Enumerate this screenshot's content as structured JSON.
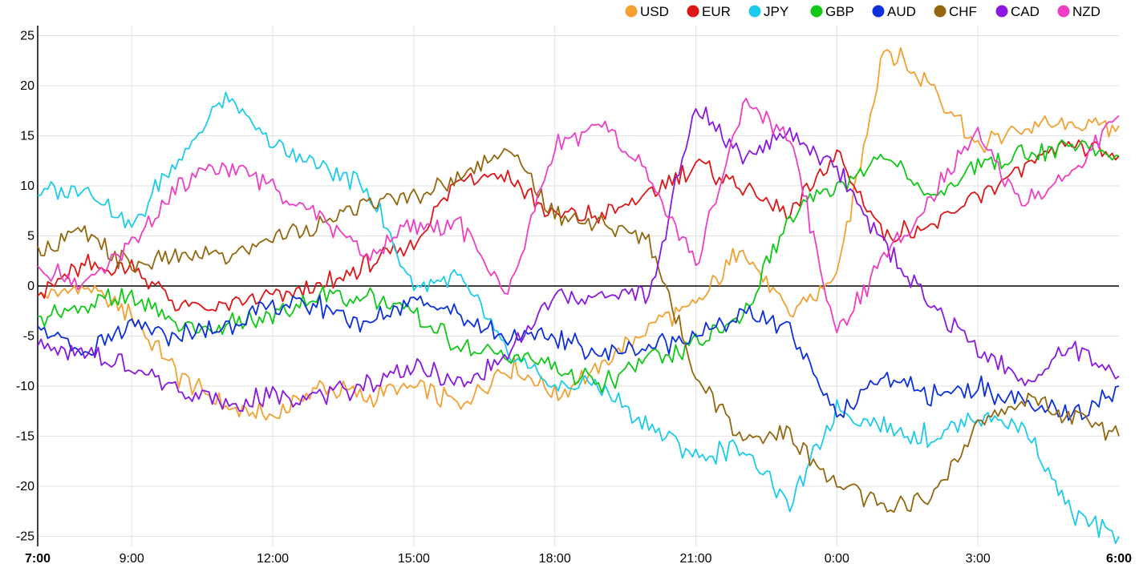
{
  "chart_data": {
    "type": "line",
    "title": "",
    "xlabel": "",
    "ylabel": "",
    "ylim": [
      -26,
      26
    ],
    "y_ticks": [
      -25,
      -20,
      -15,
      -10,
      -5,
      0,
      5,
      10,
      15,
      20,
      25
    ],
    "y_tick_labels": [
      "-25",
      "-20",
      "-15",
      "-10",
      "-5",
      "0",
      "5",
      "10",
      "15",
      "20",
      "25"
    ],
    "x_ticks": [
      0,
      2,
      5,
      8,
      11,
      14,
      17,
      20,
      23
    ],
    "x_tick_labels": [
      "7:00",
      "9:00",
      "12:00",
      "15:00",
      "18:00",
      "21:00",
      "0:00",
      "3:00",
      "6:00"
    ],
    "x_bold_ticks": [
      "7:00",
      "6:00"
    ],
    "xlim": [
      0,
      23
    ],
    "grid": true,
    "zero_line": true,
    "legend_position": "top-right",
    "x": [
      0,
      1,
      2,
      3,
      4,
      5,
      6,
      7,
      8,
      9,
      10,
      11,
      12,
      13,
      14,
      15,
      16,
      17,
      18,
      19,
      20,
      21,
      22,
      23
    ],
    "series": [
      {
        "name": "USD",
        "color": "#f4a030",
        "values": [
          -1,
          0,
          -3,
          -9,
          -12,
          -13,
          -10,
          -11,
          -10,
          -12,
          -8,
          -11,
          -8,
          -4,
          -2,
          4,
          -3,
          1,
          24,
          20,
          14,
          16,
          16,
          16
        ]
      },
      {
        "name": "EUR",
        "color": "#e01616",
        "values": [
          -1,
          2,
          2,
          -2,
          -2,
          -1,
          0,
          2,
          4,
          11,
          11,
          7,
          7,
          9,
          12,
          10,
          7,
          13,
          5,
          6,
          9,
          12,
          14,
          13
        ]
      },
      {
        "name": "JPY",
        "color": "#1ccbec",
        "values": [
          9,
          10,
          6,
          13,
          19,
          14,
          12,
          10,
          0,
          1,
          -7,
          -10,
          -10,
          -14,
          -17,
          -16,
          -22,
          -12,
          -14,
          -15,
          -13,
          -14,
          -23,
          -25
        ]
      },
      {
        "name": "GBP",
        "color": "#10c816",
        "values": [
          -3,
          -2,
          -1,
          -4,
          -4,
          -3,
          -1,
          -1,
          -3,
          -6,
          -7,
          -8,
          -10,
          -7,
          -6,
          -3,
          7,
          10,
          13,
          9,
          12,
          13,
          14,
          13
        ]
      },
      {
        "name": "AUD",
        "color": "#0c30dc",
        "values": [
          -4,
          -7,
          -4,
          -5,
          -4,
          -2,
          -2,
          -4,
          -1,
          -3,
          -5,
          -5,
          -7,
          -6,
          -5,
          -3,
          -4,
          -13,
          -9,
          -11,
          -10,
          -12,
          -13,
          -10
        ]
      },
      {
        "name": "CHF",
        "color": "#94670e",
        "values": [
          4,
          5,
          2,
          3,
          3,
          5,
          6,
          8,
          9,
          11,
          14,
          7,
          6,
          5,
          -9,
          -15,
          -15,
          -20,
          -22,
          -21,
          -14,
          -11,
          -13,
          -15
        ]
      },
      {
        "name": "CAD",
        "color": "#8a18e0",
        "values": [
          -6,
          -7,
          -8,
          -10,
          -12,
          -11,
          -11,
          -10,
          -8,
          -10,
          -7,
          -1,
          -1,
          -1,
          18,
          13,
          15,
          12,
          4,
          -2,
          -6,
          -10,
          -6,
          -9
        ]
      },
      {
        "name": "NZD",
        "color": "#ee3ec6",
        "values": [
          2,
          0,
          4,
          10,
          12,
          10,
          7,
          3,
          6,
          6,
          -1,
          14,
          16,
          11,
          2,
          18,
          15,
          -5,
          3,
          9,
          15,
          8,
          11,
          17
        ]
      }
    ]
  }
}
